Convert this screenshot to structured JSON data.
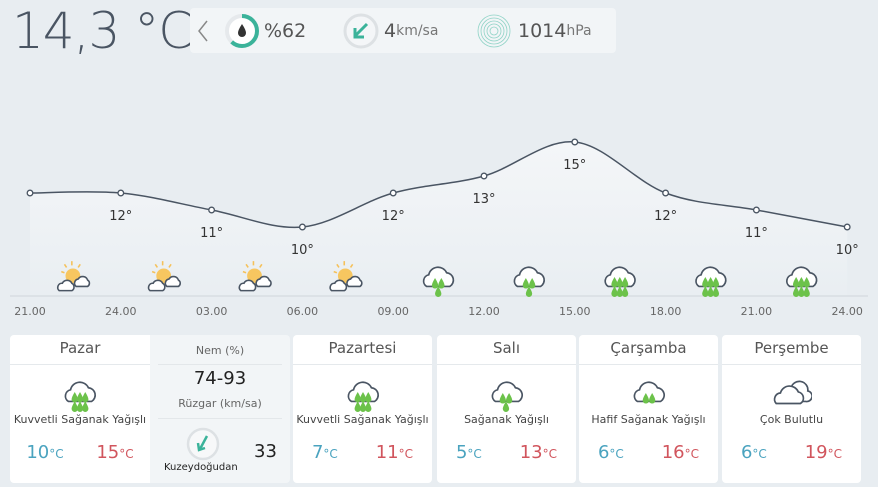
{
  "current": {
    "temperature": "14,3 °C",
    "humidity": "%62",
    "humidity_fraction": 0.62,
    "wind_value": "4",
    "wind_unit": "km/sa",
    "pressure_value": "1014",
    "pressure_unit": "hPa",
    "icons": [
      "chevron-left-icon",
      "humidity-drop-icon",
      "wind-arrow-icon",
      "pressure-icon"
    ]
  },
  "colors": {
    "low": "#4aa3bf",
    "high": "#d1555d",
    "rain": "#6cc24a",
    "accent": "#3bb39a"
  },
  "chart_data": {
    "type": "line",
    "categories": [
      "21.00",
      "24.00",
      "03.00",
      "06.00",
      "09.00",
      "12.00",
      "15.00",
      "18.00",
      "21.00",
      "24.00"
    ],
    "values": [
      12,
      12,
      11,
      10,
      12,
      13,
      15,
      12,
      11,
      10
    ],
    "labels": [
      "",
      "12°",
      "11°",
      "10°",
      "12°",
      "13°",
      "15°",
      "12°",
      "11°",
      "10°"
    ],
    "icons": [
      "partly-sunny",
      "partly-sunny",
      "partly-sunny",
      "partly-sunny",
      "rain-2",
      "rain-2",
      "rain-3",
      "rain-3",
      "rain-3"
    ]
  },
  "days": [
    {
      "name": "Pazar",
      "icon": "rain-heavy",
      "desc": "Kuvvetli Sağanak Yağışlı",
      "low": "10",
      "high": "15",
      "unit": "°C"
    },
    {
      "name": "Pazartesi",
      "icon": "rain-heavy",
      "desc": "Kuvvetli Sağanak Yağışlı",
      "low": "7",
      "high": "11",
      "unit": "°C"
    },
    {
      "name": "Salı",
      "icon": "rain",
      "desc": "Sağanak Yağışlı",
      "low": "5",
      "high": "13",
      "unit": "°C"
    },
    {
      "name": "Çarşamba",
      "icon": "rain-light",
      "desc": "Hafif Sağanak Yağışlı",
      "low": "6",
      "high": "16",
      "unit": "°C"
    },
    {
      "name": "Perşembe",
      "icon": "cloudy",
      "desc": "Çok Bulutlu",
      "low": "6",
      "high": "19",
      "unit": "°C"
    }
  ],
  "detail": {
    "humidity_label": "Nem (%)",
    "humidity_range": "74-93",
    "wind_label": "Rüzgar (km/sa)",
    "wind_direction": "Kuzeydoğudan",
    "wind_speed": "33"
  }
}
